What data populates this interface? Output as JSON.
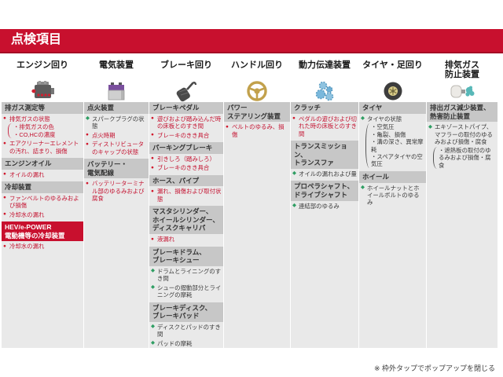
{
  "page": {
    "title": "点検項目",
    "footer_note": "※ 枠外タップでポップアップを閉じる"
  },
  "colors": {
    "accent_red": "#c8102e",
    "accent_red_dark": "#a50d26",
    "panel_bg": "#e9e9e9",
    "section_bar_bg": "#c7c7c7",
    "red_item_text": "#c41230",
    "red_bullet": "#d1172c",
    "green_bullet": "#2f9e63",
    "dark_item_text": "#3a3a3a"
  },
  "columns": [
    {
      "id": "engine",
      "title": "エンジン回り",
      "icon": "engine-icon",
      "sections": [
        {
          "label": "排ガス測定等",
          "variant": "gray",
          "items": [
            {
              "bullet": "dot",
              "color": "red",
              "text": "排気ガスの状態"
            },
            {
              "color": "red",
              "paren": [
                "・排気ガスの色",
                "・CO,HCの濃度"
              ]
            },
            {
              "bullet": "dot",
              "color": "red",
              "text": "エアクリーナーエレメントの汚れ、詰まり、損傷"
            }
          ]
        },
        {
          "label": "エンジンオイル",
          "variant": "gray",
          "items": [
            {
              "bullet": "dot",
              "color": "red",
              "text": "オイルの漏れ"
            }
          ]
        },
        {
          "label": "冷却装置",
          "variant": "gray",
          "items": [
            {
              "bullet": "dot",
              "color": "red",
              "text": "ファンベルトのゆるみおよび損傷"
            },
            {
              "bullet": "dot",
              "color": "red",
              "text": "冷却水の漏れ"
            }
          ]
        },
        {
          "label": "HEV/e-POWER\n電動機等の冷却装置",
          "variant": "red",
          "items": [
            {
              "bullet": "dot",
              "color": "red",
              "text": "冷却水の漏れ"
            }
          ]
        }
      ]
    },
    {
      "id": "electrical",
      "title": "電気装置",
      "icon": "battery-icon",
      "sections": [
        {
          "label": "点火装置",
          "variant": "gray",
          "items": [
            {
              "bullet": "diamond",
              "color": "dark",
              "text": "スパークプラグの状態"
            },
            {
              "bullet": "dot",
              "color": "red",
              "text": "点火時期"
            },
            {
              "bullet": "dot",
              "color": "red",
              "text": "ディストリビュータのキャップの状態"
            }
          ]
        },
        {
          "label": "バッテリー・\n電気配線",
          "variant": "gray",
          "items": [
            {
              "bullet": "dot",
              "color": "red",
              "text": "バッテリーターミナル部のゆるみおよび腐食"
            }
          ]
        }
      ]
    },
    {
      "id": "brake",
      "title": "ブレーキ回り",
      "icon": "brake-pedal-icon",
      "sections": [
        {
          "label": "ブレーキペダル",
          "variant": "gray",
          "items": [
            {
              "bullet": "dot",
              "color": "red",
              "text": "遊びおよび踏み込んだ時の床板とのすき間"
            },
            {
              "bullet": "dot",
              "color": "red",
              "text": "ブレーキのきき具合"
            }
          ]
        },
        {
          "label": "パーキングブレーキ",
          "variant": "gray",
          "items": [
            {
              "bullet": "dot",
              "color": "red",
              "text": "引きしろ（踏みしろ）"
            },
            {
              "bullet": "dot",
              "color": "red",
              "text": "ブレーキのきき具合"
            }
          ]
        },
        {
          "label": "ホース、パイプ",
          "variant": "gray",
          "items": [
            {
              "bullet": "dot",
              "color": "red",
              "text": "漏れ、損傷および取付状態"
            }
          ]
        },
        {
          "label": "マスタシリンダー、\nホイールシリンダー、\nディスクキャリパ",
          "variant": "gray",
          "items": [
            {
              "bullet": "dot",
              "color": "red",
              "text": "液漏れ"
            }
          ]
        },
        {
          "label": "ブレーキドラム、\nブレーキシュー",
          "variant": "gray",
          "items": [
            {
              "bullet": "diamond",
              "color": "dark",
              "text": "ドラムとライニングのすき間"
            },
            {
              "bullet": "diamond",
              "color": "dark",
              "text": "シューの摺動部分とライニングの摩耗"
            }
          ]
        },
        {
          "label": "ブレーキディスク、\nブレーキパッド",
          "variant": "gray",
          "items": [
            {
              "bullet": "diamond",
              "color": "dark",
              "text": "ディスクとパッドのすき間"
            },
            {
              "bullet": "diamond",
              "color": "dark",
              "text": "パッドの摩耗"
            }
          ]
        }
      ]
    },
    {
      "id": "steering",
      "title": "ハンドル回り",
      "icon": "steering-wheel-icon",
      "sections": [
        {
          "label": "パワー\nステアリング装置",
          "variant": "gray",
          "items": [
            {
              "bullet": "dot",
              "color": "red",
              "text": "ベルトのゆるみ、損傷"
            }
          ]
        }
      ]
    },
    {
      "id": "drivetrain",
      "title": "動力伝達装置",
      "icon": "transmission-icon",
      "sections": [
        {
          "label": "クラッチ",
          "variant": "gray",
          "items": [
            {
              "bullet": "dot",
              "color": "red",
              "text": "ペダルの遊びおよび切れた時の床板とのすき間"
            }
          ]
        },
        {
          "label": "トランスミッション、\nトランスファ",
          "variant": "gray",
          "items": [
            {
              "bullet": "diamond",
              "color": "dark",
              "text": "オイルの漏れおよび量"
            }
          ]
        },
        {
          "label": "プロペラシャフト、\nドライブシャフト",
          "variant": "gray",
          "items": [
            {
              "bullet": "diamond",
              "color": "dark",
              "text": "連結部のゆるみ"
            }
          ]
        }
      ]
    },
    {
      "id": "tire",
      "title": "タイヤ・足回り",
      "icon": "tire-icon",
      "sections": [
        {
          "label": "タイヤ",
          "variant": "gray",
          "items": [
            {
              "bullet": "diamond",
              "color": "dark",
              "text": "タイヤの状態"
            },
            {
              "color": "dark",
              "paren": [
                "・空気圧",
                "・亀裂、損傷",
                "・溝の深さ、異常摩耗",
                "・スペアタイヤの空気圧"
              ]
            }
          ]
        },
        {
          "label": "ホイール",
          "variant": "gray",
          "items": [
            {
              "bullet": "diamond",
              "color": "dark",
              "text": "ホイールナットとホイールボルトのゆるみ"
            }
          ]
        }
      ]
    },
    {
      "id": "exhaust",
      "title": "排気ガス\n防止装置",
      "icon": "muffler-icon",
      "sections": [
        {
          "label": "排出ガス減少装置、\n熱害防止装置",
          "variant": "gray",
          "items": [
            {
              "bullet": "diamond",
              "color": "dark",
              "text": "エキゾーストパイプ、マフラーの取付のゆるみおよび損傷・腐食"
            },
            {
              "color": "dark",
              "paren": [
                "・遮熱板の取付のゆるみおよび損傷・腐食"
              ]
            }
          ]
        }
      ]
    }
  ]
}
